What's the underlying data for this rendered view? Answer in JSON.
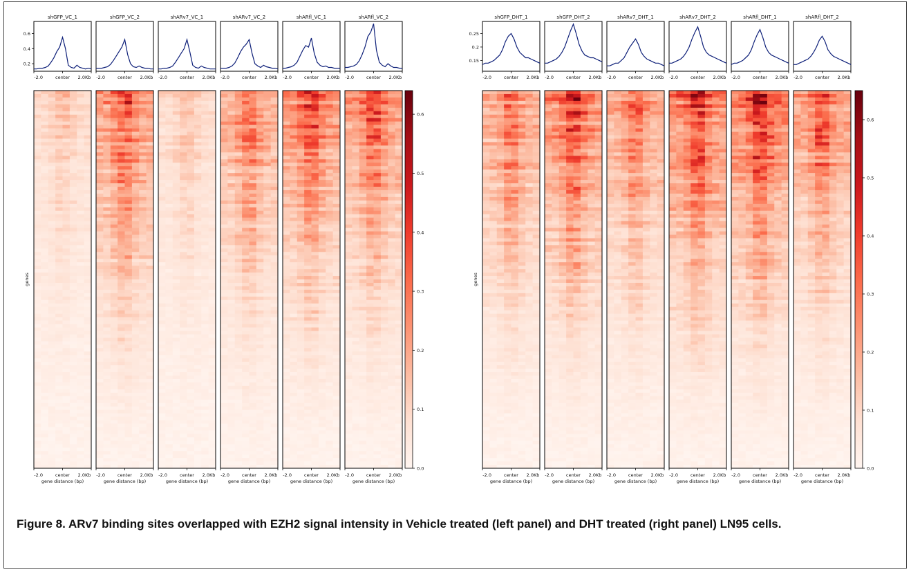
{
  "caption": "Figure 8. ARv7 binding sites overlapped with EZH2 signal intensity in Vehicle treated (left panel) and DHT treated (right panel) LN95 cells.",
  "colors": {
    "heatmap_low": "#fff5f0",
    "heatmap_high": "#67000d",
    "profile_line": "#0c1e78"
  },
  "chart_data": [
    {
      "type": "heatmap",
      "panel": "Vehicle treated",
      "ylabel": "genes",
      "xlabel": "gene distance (bp)",
      "x_ticks": [
        "-2.0",
        "center",
        "2.0Kb"
      ],
      "colorbar": {
        "ticks": [
          0.0,
          0.1,
          0.2,
          0.3,
          0.4,
          0.5,
          0.6
        ],
        "range": [
          0,
          0.64
        ],
        "cmap": "Reds"
      },
      "profile_y_ticks": [
        0.2,
        0.4,
        0.6
      ],
      "profile_ylim": [
        0.1,
        0.76
      ],
      "x": [
        -2.0,
        -1.8,
        -1.6,
        -1.4,
        -1.2,
        -1.0,
        -0.8,
        -0.6,
        -0.4,
        -0.2,
        0.0,
        0.2,
        0.4,
        0.6,
        0.8,
        1.0,
        1.2,
        1.4,
        1.6,
        1.8,
        2.0
      ],
      "series": [
        {
          "name": "shGFP_VC_1",
          "values": [
            0.13,
            0.13,
            0.14,
            0.14,
            0.15,
            0.17,
            0.22,
            0.28,
            0.36,
            0.42,
            0.55,
            0.4,
            0.18,
            0.15,
            0.14,
            0.18,
            0.15,
            0.14,
            0.13,
            0.14,
            0.13
          ],
          "intensity": 0.22
        },
        {
          "name": "shGFP_VC_2",
          "values": [
            0.14,
            0.14,
            0.14,
            0.15,
            0.16,
            0.19,
            0.24,
            0.3,
            0.36,
            0.42,
            0.52,
            0.32,
            0.2,
            0.16,
            0.15,
            0.17,
            0.15,
            0.14,
            0.14,
            0.13,
            0.13
          ],
          "intensity": 0.62
        },
        {
          "name": "shARv7_VC_1",
          "values": [
            0.13,
            0.13,
            0.14,
            0.14,
            0.15,
            0.17,
            0.22,
            0.28,
            0.34,
            0.4,
            0.52,
            0.36,
            0.18,
            0.15,
            0.14,
            0.17,
            0.15,
            0.14,
            0.13,
            0.13,
            0.13
          ],
          "intensity": 0.24
        },
        {
          "name": "shARv7_VC_2",
          "values": [
            0.14,
            0.14,
            0.14,
            0.15,
            0.17,
            0.21,
            0.28,
            0.36,
            0.42,
            0.46,
            0.52,
            0.34,
            0.2,
            0.17,
            0.15,
            0.18,
            0.16,
            0.15,
            0.14,
            0.14,
            0.13
          ],
          "intensity": 0.52
        },
        {
          "name": "shARfl_VC_1",
          "values": [
            0.14,
            0.14,
            0.15,
            0.16,
            0.18,
            0.22,
            0.3,
            0.38,
            0.44,
            0.42,
            0.54,
            0.34,
            0.22,
            0.18,
            0.16,
            0.17,
            0.15,
            0.15,
            0.14,
            0.14,
            0.14
          ],
          "intensity": 0.62
        },
        {
          "name": "shARfl_VC_2",
          "values": [
            0.15,
            0.15,
            0.16,
            0.17,
            0.19,
            0.24,
            0.32,
            0.42,
            0.56,
            0.62,
            0.73,
            0.38,
            0.22,
            0.18,
            0.16,
            0.2,
            0.17,
            0.15,
            0.15,
            0.14,
            0.14
          ],
          "intensity": 0.58
        }
      ]
    },
    {
      "type": "heatmap",
      "panel": "DHT treated",
      "ylabel": "genes",
      "xlabel": "gene distance (bp)",
      "x_ticks": [
        "-2.0",
        "center",
        "2.0Kb"
      ],
      "colorbar": {
        "ticks": [
          0.0,
          0.1,
          0.2,
          0.3,
          0.4,
          0.5,
          0.6
        ],
        "range": [
          0,
          0.65
        ],
        "cmap": "Reds"
      },
      "profile_y_ticks": [
        0.15,
        0.2,
        0.25
      ],
      "profile_ylim": [
        0.11,
        0.295
      ],
      "x": [
        -2.0,
        -1.8,
        -1.6,
        -1.4,
        -1.2,
        -1.0,
        -0.8,
        -0.6,
        -0.4,
        -0.2,
        0.0,
        0.2,
        0.4,
        0.6,
        0.8,
        1.0,
        1.2,
        1.4,
        1.6,
        1.8,
        2.0
      ],
      "series": [
        {
          "name": "shGFP_DHT_1",
          "values": [
            0.135,
            0.14,
            0.14,
            0.145,
            0.15,
            0.16,
            0.17,
            0.19,
            0.22,
            0.24,
            0.25,
            0.23,
            0.2,
            0.18,
            0.17,
            0.16,
            0.16,
            0.155,
            0.15,
            0.145,
            0.14
          ],
          "intensity": 0.52
        },
        {
          "name": "shGFP_DHT_2",
          "values": [
            0.14,
            0.14,
            0.145,
            0.15,
            0.155,
            0.165,
            0.18,
            0.2,
            0.23,
            0.26,
            0.285,
            0.25,
            0.21,
            0.185,
            0.17,
            0.165,
            0.16,
            0.16,
            0.155,
            0.15,
            0.145
          ],
          "intensity": 0.68
        },
        {
          "name": "shARv7_DHT_1",
          "values": [
            0.13,
            0.13,
            0.135,
            0.14,
            0.14,
            0.15,
            0.16,
            0.18,
            0.2,
            0.215,
            0.23,
            0.21,
            0.18,
            0.165,
            0.155,
            0.15,
            0.145,
            0.14,
            0.14,
            0.135,
            0.13
          ],
          "intensity": 0.5
        },
        {
          "name": "shARv7_DHT_2",
          "values": [
            0.14,
            0.14,
            0.145,
            0.15,
            0.155,
            0.165,
            0.18,
            0.2,
            0.23,
            0.255,
            0.275,
            0.24,
            0.2,
            0.18,
            0.17,
            0.165,
            0.16,
            0.155,
            0.15,
            0.145,
            0.14
          ],
          "intensity": 0.75
        },
        {
          "name": "shARfl_DHT_1",
          "values": [
            0.135,
            0.14,
            0.14,
            0.145,
            0.15,
            0.16,
            0.17,
            0.19,
            0.22,
            0.245,
            0.265,
            0.235,
            0.2,
            0.18,
            0.17,
            0.165,
            0.16,
            0.155,
            0.15,
            0.145,
            0.14
          ],
          "intensity": 0.75
        },
        {
          "name": "shARfl_DHT_2",
          "values": [
            0.135,
            0.135,
            0.14,
            0.145,
            0.15,
            0.155,
            0.165,
            0.18,
            0.2,
            0.225,
            0.24,
            0.22,
            0.19,
            0.175,
            0.165,
            0.16,
            0.155,
            0.15,
            0.145,
            0.14,
            0.135
          ],
          "intensity": 0.6
        }
      ]
    }
  ]
}
